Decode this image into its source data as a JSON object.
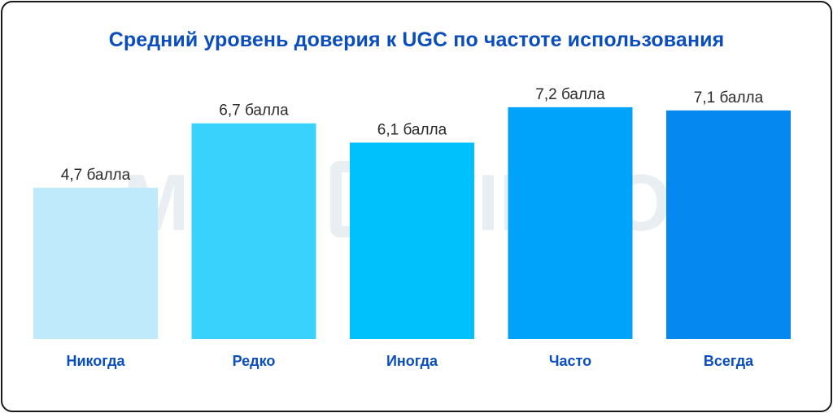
{
  "watermark": {
    "left": "MOE",
    "right": "VIDEO"
  },
  "chart_data": {
    "type": "bar",
    "title": "Средний уровень доверия к UGC по частоте использования",
    "categories": [
      "Никогда",
      "Редко",
      "Иногда",
      "Часто",
      "Всегда"
    ],
    "values": [
      4.7,
      6.7,
      6.1,
      7.2,
      7.1
    ],
    "data_labels": [
      "4,7 балла",
      "6,7 балла",
      "6,1 балла",
      "7,2 балла",
      "7,1 балла"
    ],
    "colors": [
      "#bfeafc",
      "#38d2fc",
      "#00c1fb",
      "#00a3fa",
      "#0589f0"
    ],
    "xlabel": "",
    "ylabel": "",
    "grid": false,
    "legend": "none"
  }
}
